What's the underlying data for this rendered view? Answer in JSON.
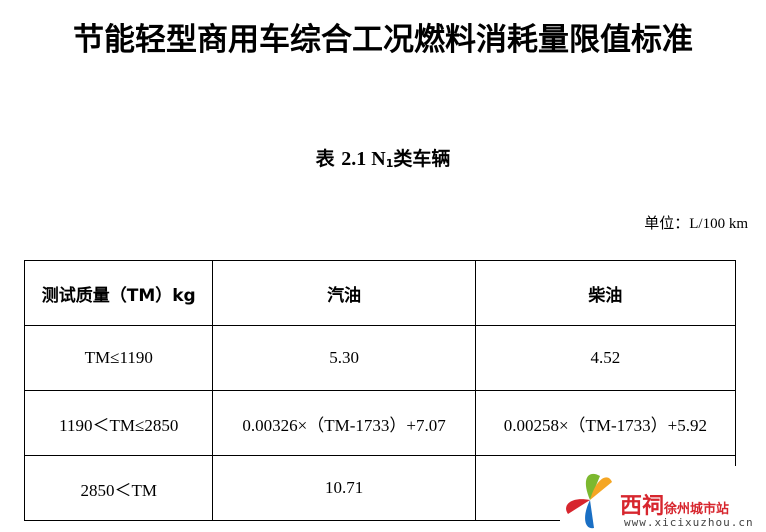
{
  "title": "节能轻型商用车综合工况燃料消耗量限值标准",
  "caption": {
    "prefix": "表",
    "number": "2.1 N",
    "subscript": "1",
    "suffix": "类车辆"
  },
  "unit": "单位：L/100 km",
  "table": {
    "headers": [
      "测试质量（TM）kg",
      "汽油",
      "柴油"
    ],
    "rows": [
      [
        "TM≤1190",
        "5.30",
        "4.52"
      ],
      [
        "1190＜TM≤2850",
        "0.00326×（TM-1733）+7.07",
        "0.00258×（TM-1733）+5.92"
      ],
      [
        "2850＜TM",
        "10.71",
        ""
      ]
    ]
  },
  "watermark": {
    "brand": "西祠",
    "city": "徐州城市站",
    "url": "www.xicixuzhou.cn"
  }
}
